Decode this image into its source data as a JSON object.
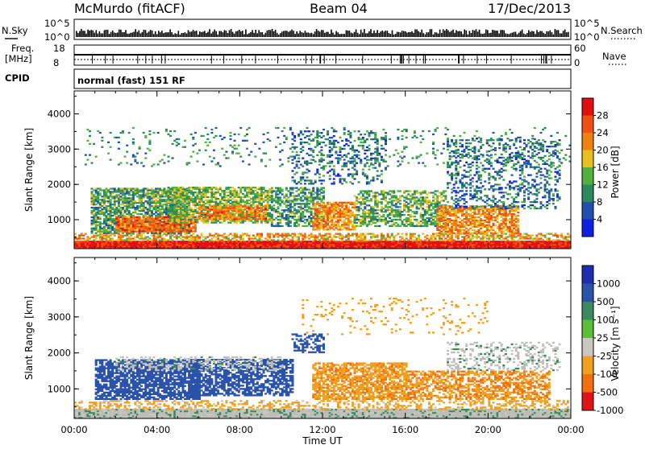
{
  "header": {
    "station": "McMurdo (fitACF)",
    "beam": "Beam 04",
    "date": "17/Dec/2013"
  },
  "noise_panel": {
    "left_label": "N.Sky",
    "right_label": "N.Search",
    "left_ticks": [
      "10^5",
      "10^0"
    ],
    "right_ticks": [
      "10^5",
      "10^0"
    ]
  },
  "freq_panel": {
    "left_label_1": "Freq.",
    "left_label_2": "[MHz]",
    "left_ticks": [
      "18",
      "8"
    ],
    "right_label": "Nave",
    "right_ticks": [
      "60",
      "0"
    ]
  },
  "cpid": {
    "label": "CPID",
    "value": "normal (fast) 151 RF"
  },
  "colors": {
    "power_scale": [
      "#1020e0",
      "#2050b0",
      "#2e8a5a",
      "#50b040",
      "#e8c020",
      "#f08010",
      "#f05010",
      "#e01010"
    ],
    "velocity_scale": [
      "#1d2fb0",
      "#2a52a8",
      "#3b8a5e",
      "#5cbf3a",
      "#c8c8c0",
      "#f0a020",
      "#f07010",
      "#e01414"
    ],
    "ground_scatter": "#bdbdb8"
  },
  "chart_data": [
    {
      "type": "heatmap",
      "name": "Power",
      "ylabel": "Slant Range [km]",
      "xlabel": "Time UT",
      "x_ticks": [
        "00:00",
        "04:00",
        "08:00",
        "12:00",
        "16:00",
        "20:00",
        "00:00"
      ],
      "y_ticks": [
        "1000",
        "2000",
        "3000",
        "4000"
      ],
      "ylim": [
        180,
        4650
      ],
      "xlim_hours": [
        0,
        24
      ],
      "colorbar": {
        "label": "Power [dB]",
        "ticks": [
          "4",
          "8",
          "12",
          "16",
          "20",
          "24",
          "28"
        ],
        "range": [
          0,
          32
        ]
      },
      "regions": [
        {
          "t0": 0.0,
          "t1": 24.0,
          "r0": 180,
          "r1": 400,
          "level": 30,
          "density": 1.0
        },
        {
          "t0": 0.0,
          "t1": 24.0,
          "r0": 400,
          "r1": 600,
          "level": 20,
          "density": 0.55
        },
        {
          "t0": 0.8,
          "t1": 5.5,
          "r0": 600,
          "r1": 1900,
          "level": 12,
          "density": 0.75
        },
        {
          "t0": 2.0,
          "t1": 5.8,
          "r0": 650,
          "r1": 1100,
          "level": 24,
          "density": 0.85
        },
        {
          "t0": 4.5,
          "t1": 9.5,
          "r0": 900,
          "r1": 1900,
          "level": 14,
          "density": 0.7
        },
        {
          "t0": 6.0,
          "t1": 9.2,
          "r0": 1000,
          "r1": 1400,
          "level": 23,
          "density": 0.7
        },
        {
          "t0": 9.5,
          "t1": 12.0,
          "r0": 800,
          "r1": 1900,
          "level": 11,
          "density": 0.55
        },
        {
          "t0": 10.5,
          "t1": 15.0,
          "r0": 2000,
          "r1": 3500,
          "level": 8,
          "density": 0.25
        },
        {
          "t0": 11.5,
          "t1": 13.5,
          "r0": 700,
          "r1": 1500,
          "level": 22,
          "density": 0.75
        },
        {
          "t0": 13.5,
          "t1": 18.0,
          "r0": 800,
          "r1": 1800,
          "level": 13,
          "density": 0.55
        },
        {
          "t0": 17.5,
          "t1": 21.5,
          "r0": 600,
          "r1": 1400,
          "level": 22,
          "density": 0.7
        },
        {
          "t0": 18.0,
          "t1": 23.5,
          "r0": 1300,
          "r1": 3300,
          "level": 8,
          "density": 0.3
        },
        {
          "t0": 0.5,
          "t1": 24.0,
          "r0": 2500,
          "r1": 3600,
          "level": 10,
          "density": 0.08
        }
      ]
    },
    {
      "type": "heatmap",
      "name": "Velocity",
      "ylabel": "Slant Range [km]",
      "xlabel": "Time UT",
      "x_ticks": [
        "00:00",
        "04:00",
        "08:00",
        "12:00",
        "16:00",
        "20:00",
        "00:00"
      ],
      "y_ticks": [
        "1000",
        "2000",
        "3000",
        "4000"
      ],
      "ylim": [
        180,
        4650
      ],
      "xlim_hours": [
        0,
        24
      ],
      "colorbar": {
        "label": "Velocity [m s⁻¹]",
        "ticks": [
          "1000",
          "500",
          "100",
          "25",
          "-25",
          "-100",
          "-500",
          "-1000"
        ],
        "range": [
          -1000,
          1000
        ]
      },
      "regions": [
        {
          "t0": 0.0,
          "t1": 24.0,
          "r0": 180,
          "r1": 420,
          "level": 0,
          "density": 1.0
        },
        {
          "t0": 0.0,
          "t1": 24.0,
          "r0": 420,
          "r1": 650,
          "level": -150,
          "density": 0.35
        },
        {
          "t0": 1.0,
          "t1": 6.0,
          "r0": 700,
          "r1": 1800,
          "level": 300,
          "density": 0.75
        },
        {
          "t0": 5.5,
          "t1": 10.5,
          "r0": 800,
          "r1": 1800,
          "level": 250,
          "density": 0.65
        },
        {
          "t0": 2.0,
          "t1": 10.0,
          "r0": 1500,
          "r1": 1900,
          "level": 0,
          "density": 0.35
        },
        {
          "t0": 10.5,
          "t1": 12.0,
          "r0": 2000,
          "r1": 2500,
          "level": 300,
          "density": 0.45
        },
        {
          "t0": 11.5,
          "t1": 16.0,
          "r0": 700,
          "r1": 1700,
          "level": -400,
          "density": 0.7
        },
        {
          "t0": 16.0,
          "t1": 23.0,
          "r0": 700,
          "r1": 1500,
          "level": -450,
          "density": 0.6
        },
        {
          "t0": 18.0,
          "t1": 23.5,
          "r0": 1500,
          "r1": 2300,
          "level": 0,
          "density": 0.3
        },
        {
          "t0": 11.0,
          "t1": 20.0,
          "r0": 2500,
          "r1": 3500,
          "level": -200,
          "density": 0.08
        }
      ]
    }
  ]
}
